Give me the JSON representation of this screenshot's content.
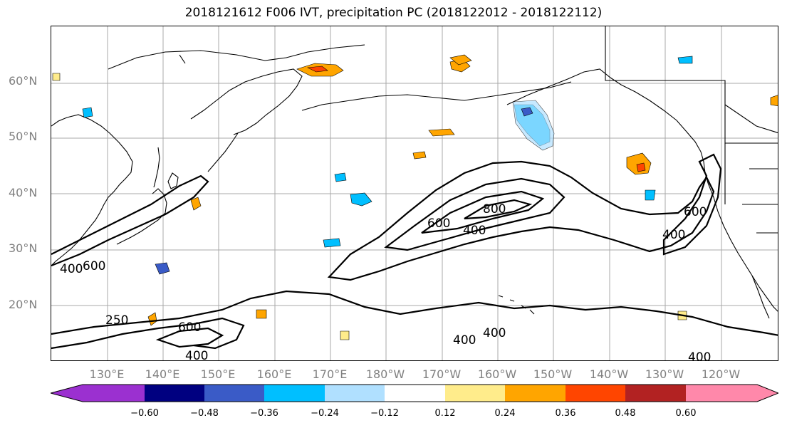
{
  "title": "2018121612 F006 IVT, precipitation PC (2018122012 - 2018122112)",
  "lat_labels": [
    "60°N",
    "50°N",
    "40°N",
    "30°N",
    "20°N"
  ],
  "lon_labels": [
    "130°E",
    "140°E",
    "150°E",
    "160°E",
    "170°E",
    "180°W",
    "170°W",
    "160°W",
    "150°W",
    "140°W",
    "130°W",
    "120°W"
  ],
  "ivt_contour_labels": [
    "400",
    "600",
    "250",
    "600",
    "400",
    "600",
    "800",
    "400",
    "400",
    "400",
    "400",
    "600",
    "400"
  ],
  "colorbar": {
    "colors": [
      "#9b30d0",
      "#000080",
      "#3a5bc7",
      "#00bfff",
      "#b0e0ff",
      "#ffffff",
      "#ffec8b",
      "#ffa500",
      "#ff4500",
      "#b22222",
      "#ff88aa"
    ],
    "tick_labels": [
      "−0.60",
      "−0.48",
      "−0.36",
      "−0.24",
      "−0.12",
      "0.12",
      "0.24",
      "0.36",
      "0.48",
      "0.60"
    ]
  }
}
